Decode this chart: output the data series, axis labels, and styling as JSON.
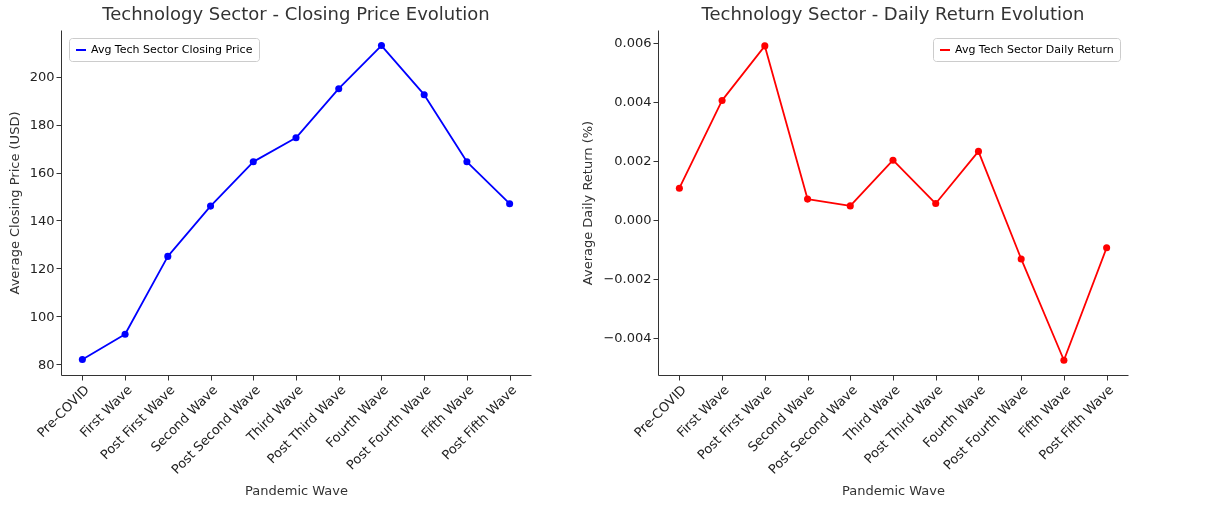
{
  "chart_data": [
    {
      "type": "line",
      "title": "Technology Sector - Closing Price Evolution",
      "xlabel": "Pandemic Wave",
      "ylabel": "Average Closing Price (USD)",
      "categories": [
        "Pre-COVID",
        "First Wave",
        "Post First Wave",
        "Second Wave",
        "Post Second Wave",
        "Third Wave",
        "Post Third Wave",
        "Fourth Wave",
        "Post Fourth Wave",
        "Fifth Wave",
        "Post Fifth Wave"
      ],
      "series": [
        {
          "name": "Avg Tech Sector Closing Price",
          "color": "#0000ff",
          "values": [
            82,
            92.5,
            125,
            146,
            164.5,
            174.5,
            195,
            213,
            192.5,
            164.5,
            147
          ]
        }
      ],
      "ylim": [
        75.5,
        219.5
      ],
      "yticks": [
        80,
        100,
        120,
        140,
        160,
        180,
        200
      ],
      "grid": false,
      "legend": "top left",
      "marker": "circle",
      "line_style": "solid"
    },
    {
      "type": "line",
      "title": "Technology Sector - Daily Return Evolution",
      "xlabel": "Pandemic Wave",
      "ylabel": "Average Daily Return (%)",
      "categories": [
        "Pre-COVID",
        "First Wave",
        "Post First Wave",
        "Second Wave",
        "Post Second Wave",
        "Third Wave",
        "Post Third Wave",
        "Fourth Wave",
        "Post Fourth Wave",
        "Fifth Wave",
        "Post Fifth Wave"
      ],
      "series": [
        {
          "name": "Avg Tech Sector Daily Return",
          "color": "#ff0000",
          "values": [
            0.00107,
            0.00405,
            0.0059,
            0.0007,
            0.00047,
            0.00202,
            0.00055,
            0.00232,
            -0.00133,
            -0.00477,
            -0.00095
          ]
        }
      ],
      "ylim": [
        -0.00527,
        0.00644
      ],
      "yticks": [
        {
          "value": -0.004,
          "label": "−0.004"
        },
        {
          "value": -0.002,
          "label": "−0.002"
        },
        "0.000",
        "0.002",
        "0.004",
        "0.006"
      ],
      "grid": false,
      "legend": "top right",
      "marker": "circle",
      "line_style": "solid"
    }
  ]
}
